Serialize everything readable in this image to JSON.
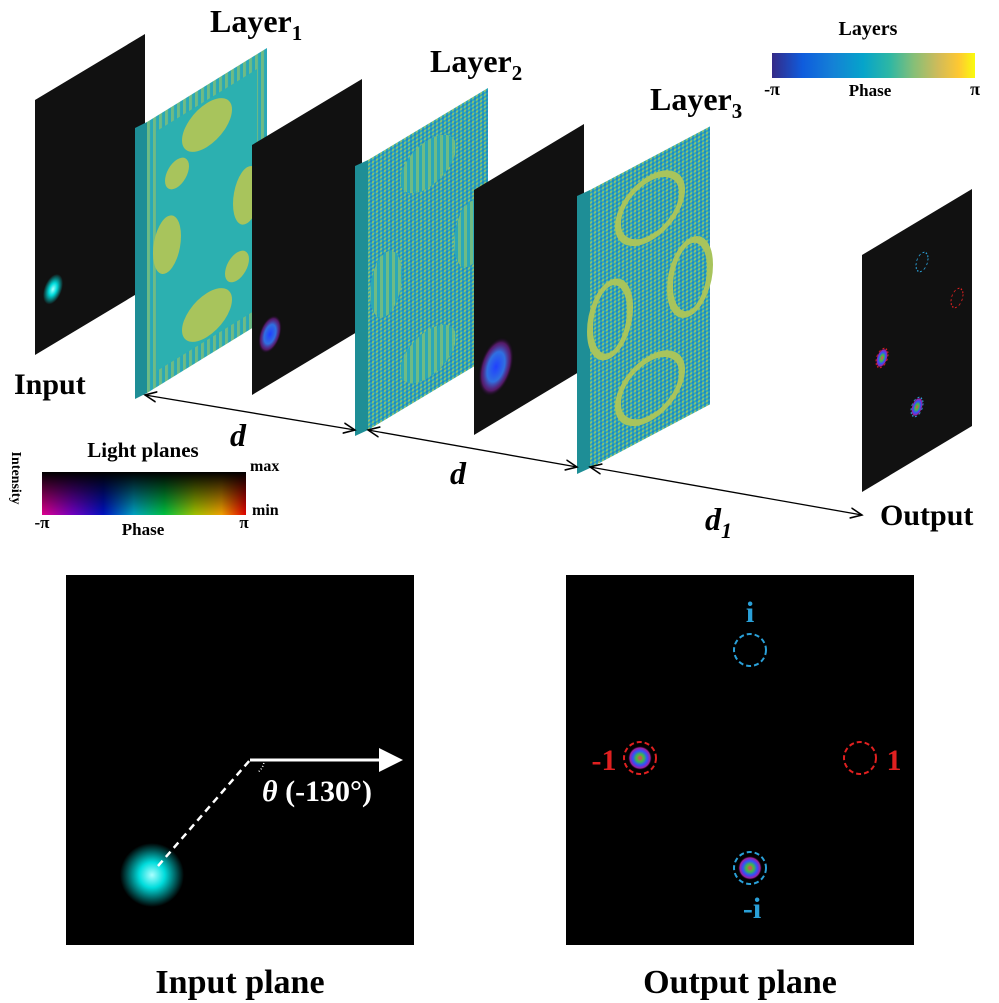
{
  "layers": [
    {
      "label": "Layer",
      "index": "1"
    },
    {
      "label": "Layer",
      "index": "2"
    },
    {
      "label": "Layer",
      "index": "3"
    }
  ],
  "layer_colorbar": {
    "title": "Layers",
    "min": "-π",
    "label": "Phase",
    "max": "π"
  },
  "light_colorbar": {
    "title": "Light planes",
    "intensity_label": "Intensity",
    "intensity_max": "max",
    "intensity_min": "min",
    "phase_min": "-π",
    "phase_label": "Phase",
    "phase_max": "π"
  },
  "input_label": "Input",
  "output_label": "Output",
  "distances": [
    {
      "label": "d"
    },
    {
      "label": "d"
    },
    {
      "label": "d",
      "sub": "1"
    }
  ],
  "input_plane": {
    "title": "Input plane",
    "angle_symbol": "θ",
    "angle_value": "(-130°)"
  },
  "output_plane": {
    "title": "Output plane",
    "targets": [
      "i",
      "-1",
      "1",
      "-i"
    ]
  }
}
